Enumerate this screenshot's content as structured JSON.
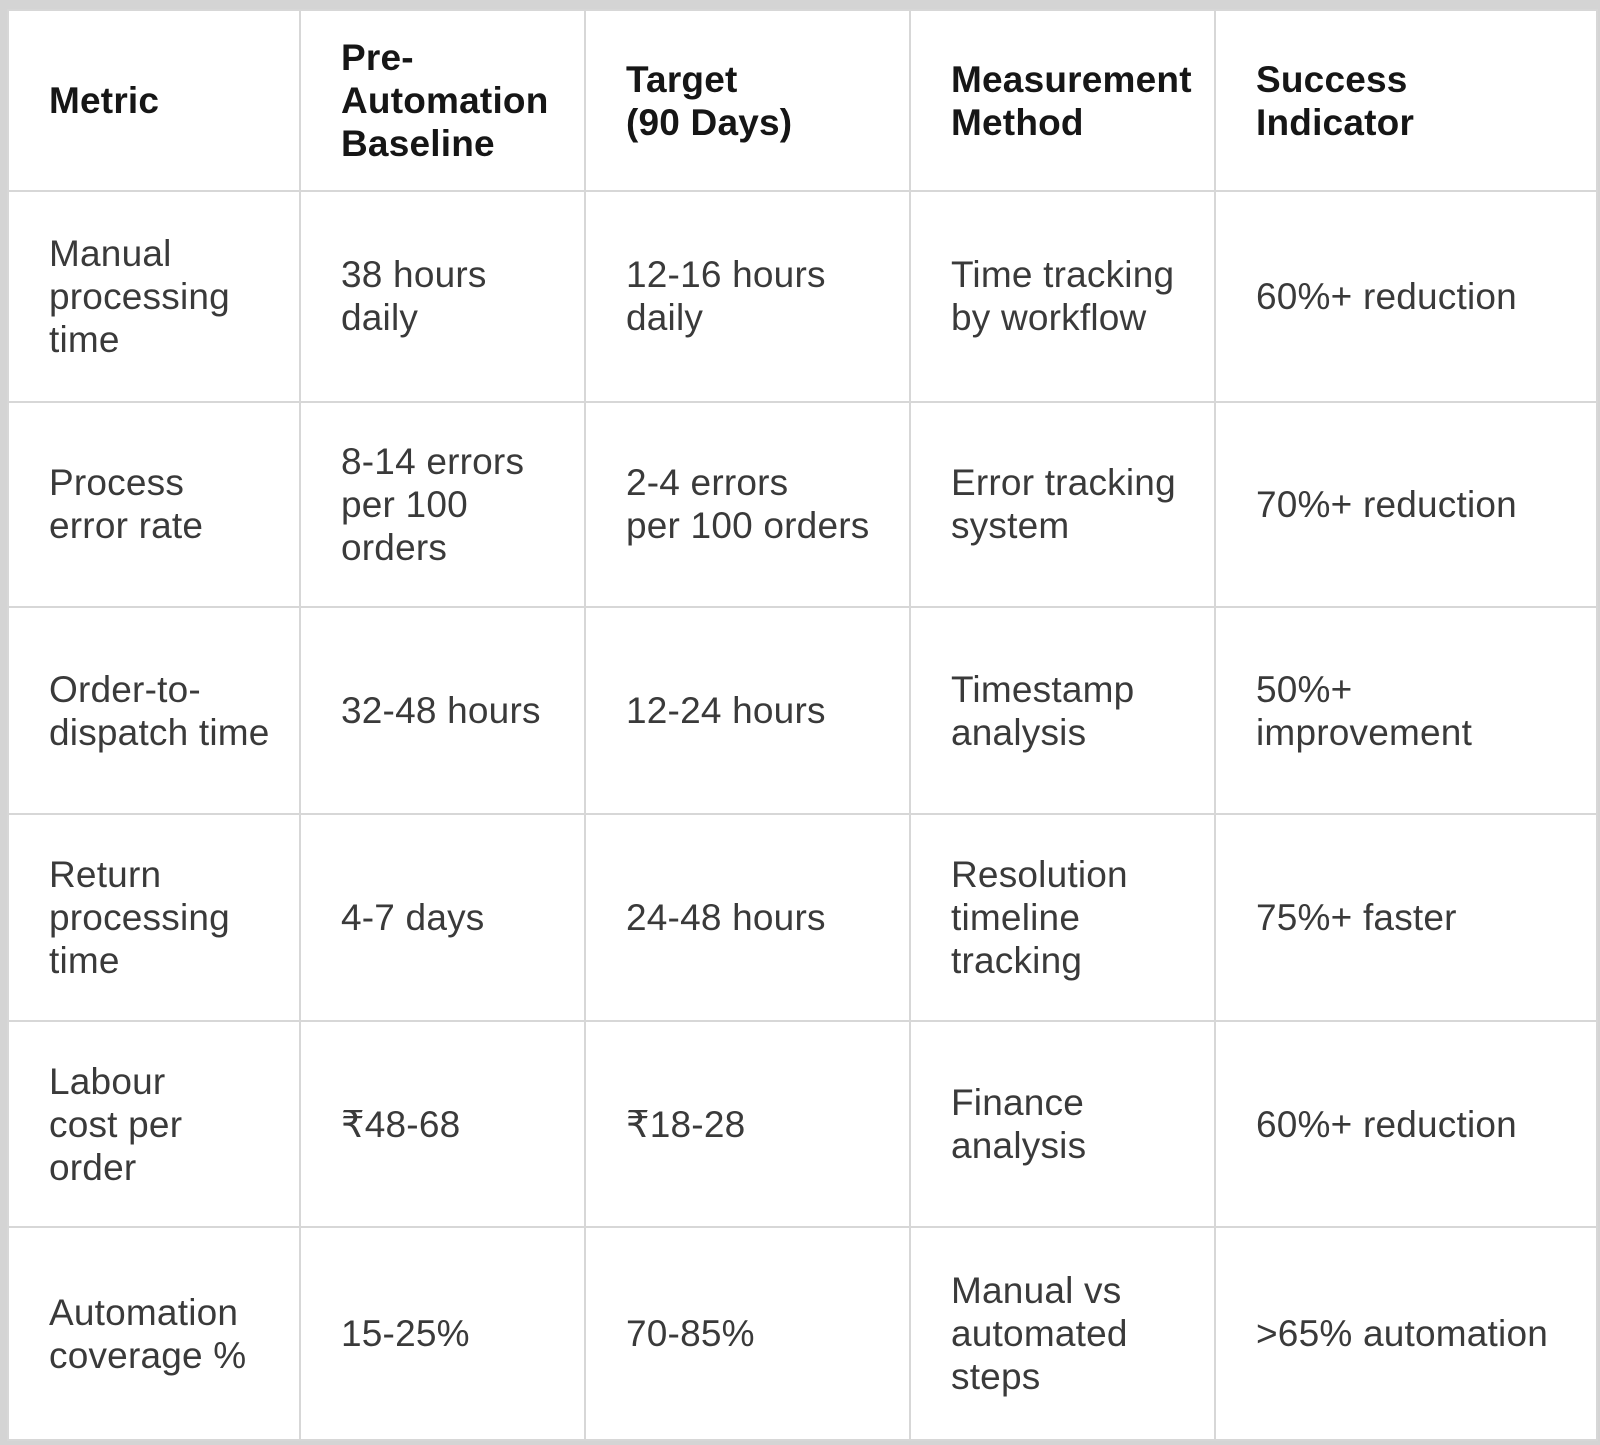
{
  "table": {
    "columns": [
      "Metric",
      "Pre-\nAutomation\nBaseline",
      "Target\n(90 Days)",
      "Measurement\nMethod",
      "Success Indicator"
    ],
    "rows": [
      [
        "Manual\nprocessing\ntime",
        "38 hours\ndaily",
        "12-16 hours\ndaily",
        "Time tracking\nby workflow",
        "60%+ reduction"
      ],
      [
        "Process\nerror rate",
        "8-14 errors\nper 100\norders",
        "2-4 errors\nper 100 orders",
        "Error tracking\nsystem",
        "70%+ reduction"
      ],
      [
        "Order-to-\ndispatch time",
        "32-48 hours",
        "12-24 hours",
        "Timestamp\nanalysis",
        "50%+ improvement"
      ],
      [
        "Return\nprocessing\ntime",
        "4-7 days",
        "24-48 hours",
        "Resolution\ntimeline\ntracking",
        "75%+ faster"
      ],
      [
        "Labour\ncost per\norder",
        "₹48-68",
        "₹18-28",
        "Finance\nanalysis",
        "60%+ reduction"
      ],
      [
        "Automation\ncoverage %",
        "15-25%",
        "70-85%",
        "Manual vs\nautomated\nsteps",
        ">65% automation"
      ]
    ],
    "colors": {
      "background": "#d4d4d4",
      "cell_background": "#ffffff",
      "border": "#d7d7d7",
      "header_text": "#161616",
      "body_text": "#3a3a3a"
    }
  }
}
